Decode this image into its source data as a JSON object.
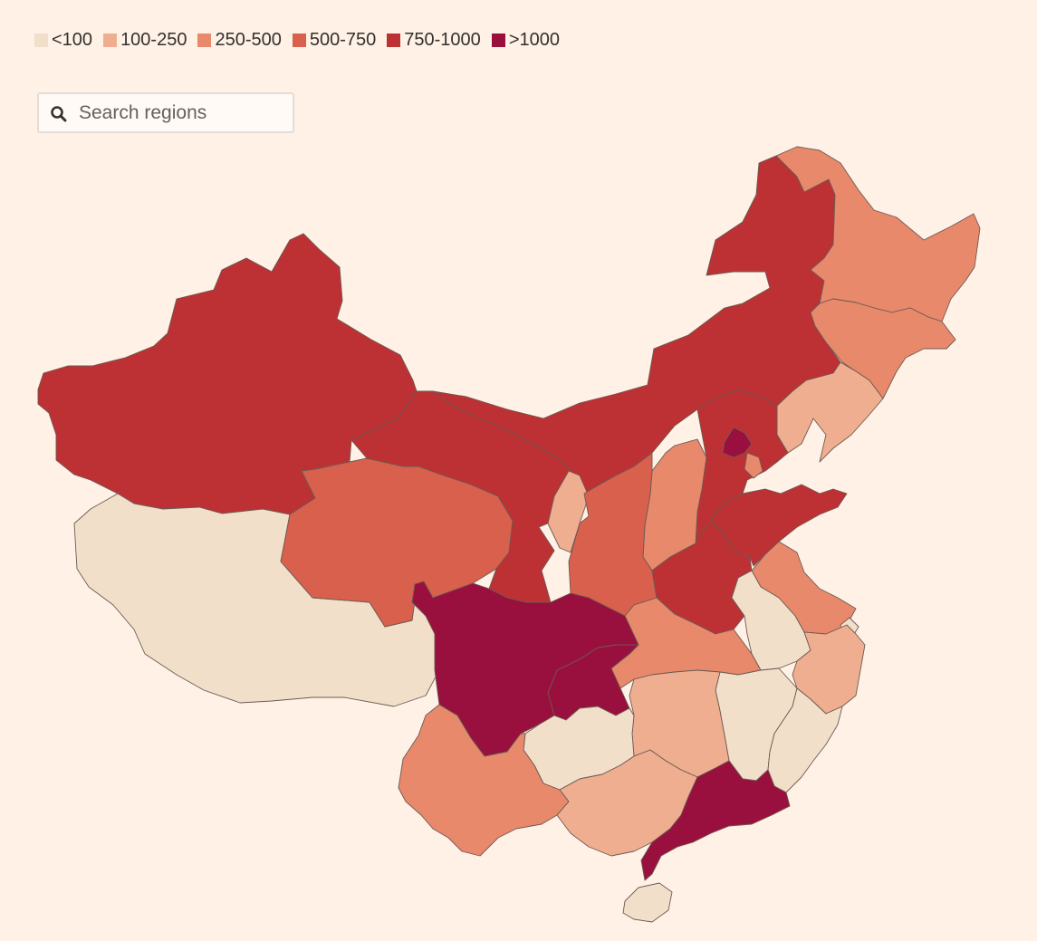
{
  "legend": {
    "items": [
      {
        "label": "<100",
        "color": "#f2dfca"
      },
      {
        "label": "100-250",
        "color": "#f0ae90"
      },
      {
        "label": "250-500",
        "color": "#e8896c"
      },
      {
        "label": "500-750",
        "color": "#d8604c"
      },
      {
        "label": "750-1000",
        "color": "#bd3134"
      },
      {
        "label": ">1000",
        "color": "#990f3d"
      }
    ]
  },
  "search": {
    "placeholder": "Search regions",
    "value": ""
  },
  "icons": {
    "search": "search-icon"
  }
}
